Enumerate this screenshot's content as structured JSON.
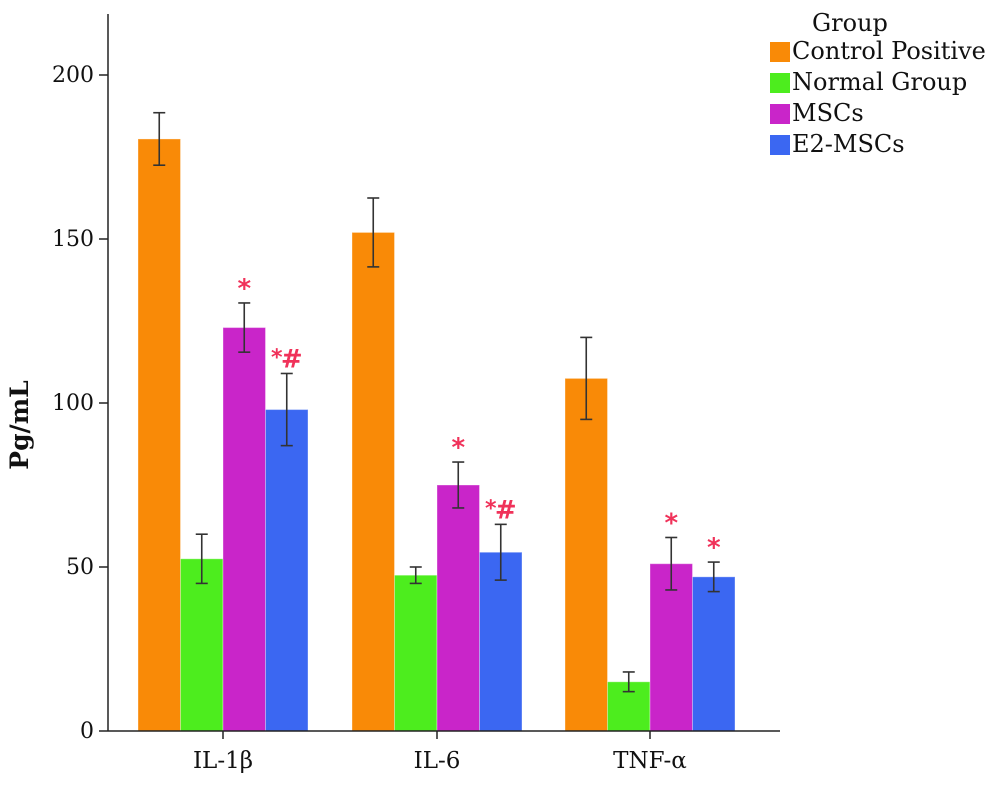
{
  "chart_data": {
    "type": "bar",
    "title": "",
    "xlabel": "",
    "ylabel": "Pg/mL",
    "ylim": [
      0,
      220
    ],
    "yticks": [
      0,
      50,
      100,
      150,
      200
    ],
    "categories": [
      "IL-1β",
      "IL-6",
      "TNF-α"
    ],
    "legend": {
      "title": "Group",
      "placement": "top-right"
    },
    "series": [
      {
        "name": "Control Positive",
        "color": "#f98a07",
        "values": [
          180.5,
          152,
          107.5
        ],
        "errors": [
          8,
          10.5,
          12.5
        ]
      },
      {
        "name": "Normal Group",
        "color": "#4ded1e",
        "values": [
          52.5,
          47.5,
          15
        ],
        "errors": [
          7.5,
          2.5,
          3
        ]
      },
      {
        "name": "MSCs",
        "color": "#c925c9",
        "values": [
          123,
          75,
          51
        ],
        "errors": [
          7.5,
          7,
          8
        ]
      },
      {
        "name": "E2-MSCs",
        "color": "#3b67f2",
        "values": [
          98,
          54.5,
          47
        ],
        "errors": [
          11,
          8.5,
          4.5
        ]
      }
    ],
    "annotations": [
      {
        "category": "IL-1β",
        "series": "MSCs",
        "text": "*"
      },
      {
        "category": "IL-1β",
        "series": "E2-MSCs",
        "text": "*",
        "text2": "#"
      },
      {
        "category": "IL-6",
        "series": "MSCs",
        "text": "*"
      },
      {
        "category": "IL-6",
        "series": "E2-MSCs",
        "text": "*",
        "text2": "#"
      },
      {
        "category": "TNF-α",
        "series": "MSCs",
        "text": "*"
      },
      {
        "category": "TNF-α",
        "series": "E2-MSCs",
        "text": "*"
      }
    ],
    "grid": false
  }
}
